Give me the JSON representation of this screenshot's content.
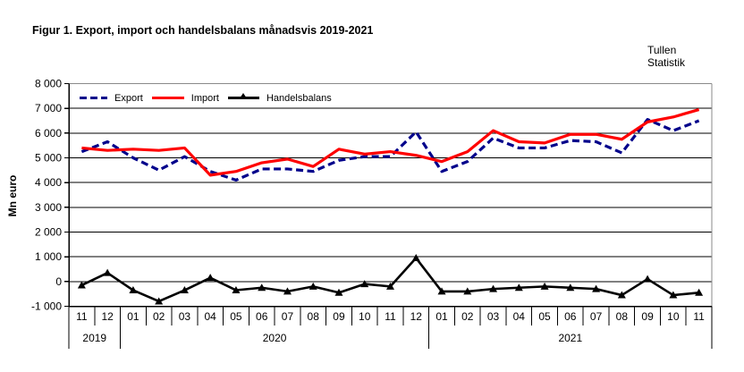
{
  "title": "Figur 1. Export, import och handelsbalans månadsvis 2019-2021",
  "brand": {
    "line1": "Tullen",
    "line2": "Statistik"
  },
  "chart_data": {
    "type": "line",
    "title": "Figur 1. Export, import och handelsbalans månadsvis 2019-2021",
    "xlabel": "",
    "ylabel": "Mn euro",
    "ylim": [
      -1000,
      8000
    ],
    "ytick_step": 1000,
    "ytick_labels": [
      "8 000",
      "7 000",
      "6 000",
      "5 000",
      "4 000",
      "3 000",
      "2 000",
      "1 000",
      "0",
      "-1 000"
    ],
    "grid": true,
    "legend_position": "top-left-inside",
    "x_months": [
      "11",
      "12",
      "01",
      "02",
      "03",
      "04",
      "05",
      "06",
      "07",
      "08",
      "09",
      "10",
      "11",
      "12",
      "01",
      "02",
      "03",
      "04",
      "05",
      "06",
      "07",
      "08",
      "09",
      "10",
      "11"
    ],
    "year_groups": [
      {
        "label": "2019",
        "count": 2
      },
      {
        "label": "2020",
        "count": 12
      },
      {
        "label": "2021",
        "count": 11
      }
    ],
    "series": [
      {
        "name": "Export",
        "color": "#00008B",
        "style": "dashed",
        "values": [
          5250,
          5650,
          5000,
          4500,
          5050,
          4450,
          4100,
          4550,
          4550,
          4450,
          4900,
          5050,
          5050,
          6050,
          4450,
          4850,
          5800,
          5400,
          5400,
          5700,
          5650,
          5200,
          6550,
          6100,
          6500
        ]
      },
      {
        "name": "Import",
        "color": "#FF0000",
        "style": "solid",
        "values": [
          5400,
          5300,
          5350,
          5300,
          5400,
          4300,
          4450,
          4800,
          4950,
          4650,
          5350,
          5150,
          5250,
          5100,
          4850,
          5250,
          6100,
          5650,
          5600,
          5950,
          5950,
          5750,
          6450,
          6650,
          6950
        ]
      },
      {
        "name": "Handelsbalans",
        "color": "#000000",
        "style": "solid",
        "marker": "triangle",
        "values": [
          -150,
          350,
          -350,
          -800,
          -350,
          150,
          -350,
          -250,
          -400,
          -200,
          -450,
          -100,
          -200,
          950,
          -400,
          -400,
          -300,
          -250,
          -200,
          -250,
          -300,
          -550,
          100,
          -550,
          -450
        ]
      }
    ]
  }
}
